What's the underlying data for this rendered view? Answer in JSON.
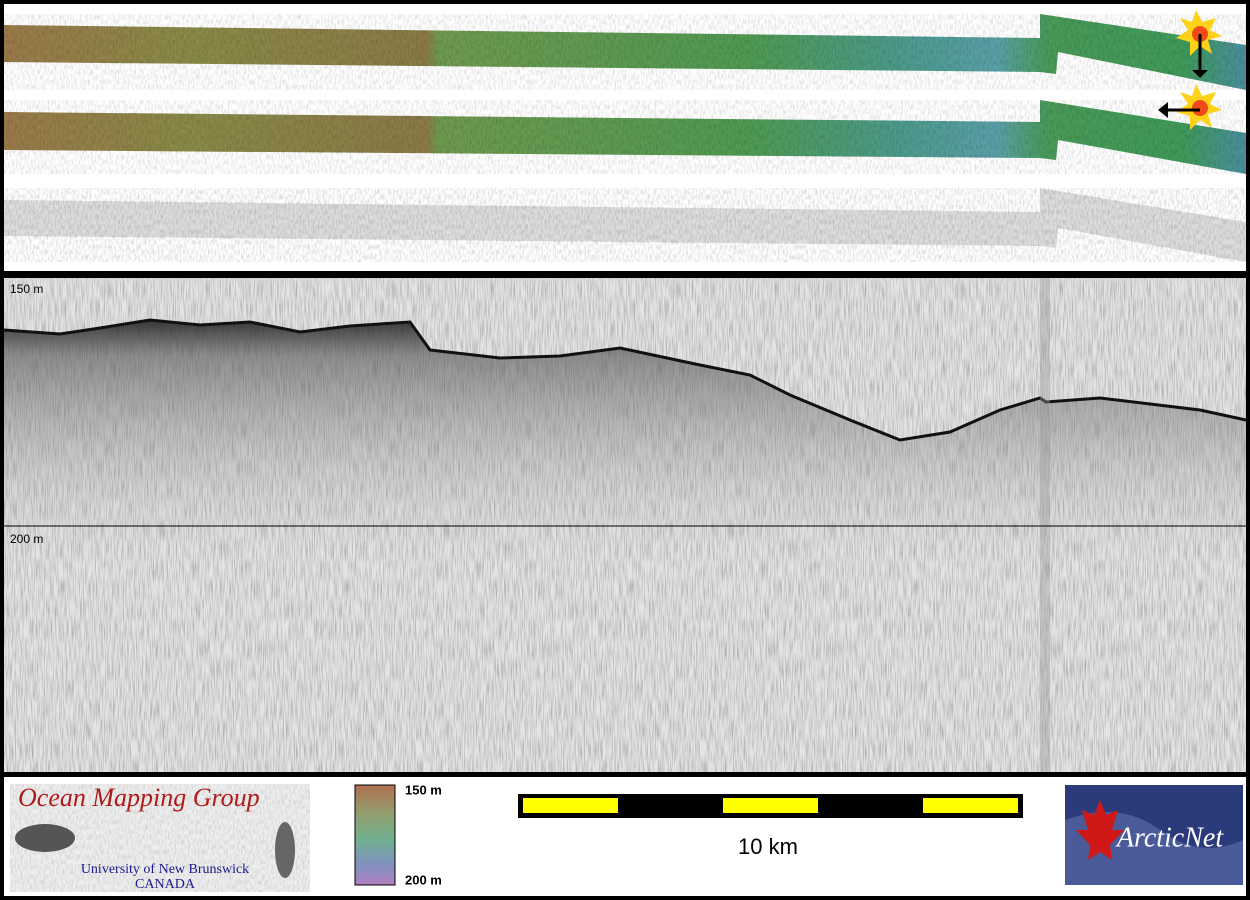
{
  "profile": {
    "depth_labels": [
      "150 m",
      "200 m"
    ]
  },
  "legend": {
    "logo": {
      "title": "Ocean Mapping Group",
      "line1": "University of New Brunswick",
      "line2": "CANADA"
    },
    "colorbar": {
      "top": "150 m",
      "bottom": "200 m"
    },
    "scale_bar": {
      "label": "10 km"
    },
    "partner": "ArcticNet"
  }
}
